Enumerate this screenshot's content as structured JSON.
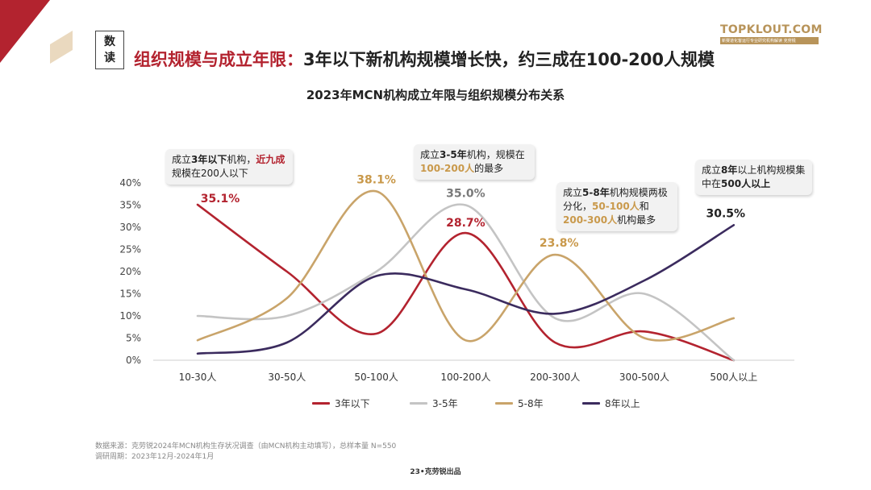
{
  "badge": {
    "line1": "数",
    "line2": "读"
  },
  "headline": {
    "highlight": "组织规模与成立年限：",
    "rest": "3年以下新机构规模增长快，约三成在100-200人规模"
  },
  "logo": {
    "main": "TOPKLOUT.COM",
    "sub": "新赛道化客运行专业研究机构解读 克劳锐"
  },
  "chart_data": {
    "type": "line",
    "title": "2023年MCN机构成立年限与组织规模分布关系",
    "categories": [
      "10-30人",
      "30-50人",
      "50-100人",
      "100-200人",
      "200-300人",
      "300-500人",
      "500人以上"
    ],
    "y_ticks": [
      "0%",
      "5%",
      "10%",
      "15%",
      "20%",
      "25%",
      "30%",
      "35%",
      "40%"
    ],
    "ylim": [
      0,
      40
    ],
    "series": [
      {
        "name": "3年以下",
        "color": "#b3232f",
        "values": [
          35.1,
          20.0,
          6.0,
          28.7,
          4.0,
          6.5,
          0.0
        ]
      },
      {
        "name": "3-5年",
        "color": "#c4c4c4",
        "values": [
          10.0,
          10.0,
          20.0,
          35.0,
          9.5,
          15.0,
          0.0
        ]
      },
      {
        "name": "5-8年",
        "color": "#c9a46a",
        "values": [
          4.5,
          14.0,
          38.1,
          4.5,
          23.8,
          5.0,
          9.5
        ]
      },
      {
        "name": "8年以上",
        "color": "#3b2b5e",
        "values": [
          1.5,
          4.0,
          19.0,
          16.0,
          10.5,
          18.0,
          30.5
        ]
      }
    ],
    "data_labels": [
      {
        "series": 0,
        "index": 0,
        "text": "35.1%"
      },
      {
        "series": 2,
        "index": 2,
        "text": "38.1%"
      },
      {
        "series": 1,
        "index": 3,
        "text": "35.0%"
      },
      {
        "series": 0,
        "index": 3,
        "text": "28.7%"
      },
      {
        "series": 2,
        "index": 4,
        "text": "23.8%"
      },
      {
        "series": 3,
        "index": 6,
        "text": "30.5%"
      }
    ]
  },
  "notes": {
    "n1": {
      "a": "成立",
      "b": "3年以下",
      "c": "机构，",
      "d": "近九成",
      "e": "规模在200人以下"
    },
    "n2": {
      "a": "成立",
      "b": "3-5年",
      "c": "机构，规模在",
      "d": "100-200人",
      "e": "的最多"
    },
    "n3": {
      "a": "成立",
      "b": "5-8年",
      "c": "机构规模两极分化，",
      "d": "50-100人",
      "e": "和",
      "f": "200-300人",
      "g": "机构最多"
    },
    "n4": {
      "a": "成立",
      "b": "8年",
      "c": "以上机构规模集中在",
      "d": "500人以上"
    }
  },
  "source": {
    "line1": "数据来源：克劳锐2024年MCN机构生存状况调查（由MCN机构主动填写），总样本量 N=550",
    "line2": "调研周期：2023年12月-2024年1月"
  },
  "footer": "23•克劳锐出品"
}
